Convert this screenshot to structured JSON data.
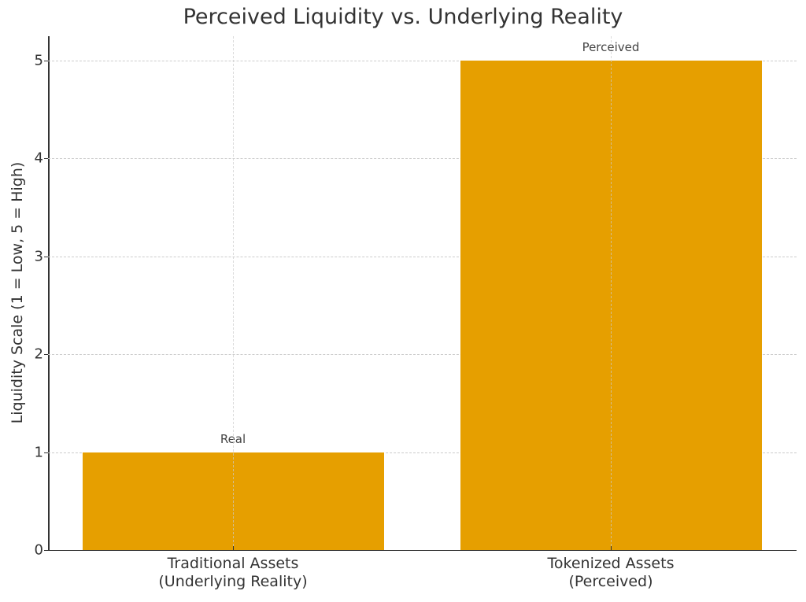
{
  "chart_data": {
    "type": "bar",
    "title": "Perceived Liquidity vs. Underlying Reality",
    "xlabel": "",
    "ylabel": "Liquidity Scale (1 = Low, 5 = High)",
    "categories": [
      "Traditional Assets\n(Underlying Reality)",
      "Tokenized Assets\n(Perceived)"
    ],
    "category_lines": [
      [
        "Traditional Assets",
        "(Underlying Reality)"
      ],
      [
        "Tokenized Assets",
        "(Perceived)"
      ]
    ],
    "values": [
      1,
      5
    ],
    "bar_labels": [
      "Real",
      "Perceived"
    ],
    "bar_color": "#E69F00",
    "ylim": [
      0,
      5.25
    ],
    "yticks": [
      0,
      1,
      2,
      3,
      4,
      5
    ],
    "grid": true,
    "grid_style": "dashed",
    "legend": null
  }
}
